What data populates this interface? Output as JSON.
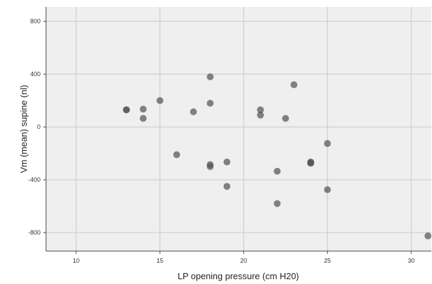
{
  "chart_data": {
    "type": "scatter",
    "xlabel": "LP opening pressure (cm H20)",
    "ylabel": "Vm (mean) supine (nl)",
    "xlim": [
      8.2,
      31.2
    ],
    "ylim": [
      -940,
      910
    ],
    "xticks": [
      10,
      15,
      20,
      25,
      30
    ],
    "yticks": [
      800,
      400,
      0,
      -400,
      -800
    ],
    "xtick_labels": [
      "10",
      "15",
      "20",
      "25",
      "30"
    ],
    "ytick_labels": [
      "800",
      "400",
      "0",
      "-400",
      "-800"
    ],
    "grid": true,
    "points": [
      {
        "x": 13,
        "y": 130
      },
      {
        "x": 13,
        "y": 130
      },
      {
        "x": 14,
        "y": 135
      },
      {
        "x": 14,
        "y": 65
      },
      {
        "x": 15,
        "y": 200
      },
      {
        "x": 16,
        "y": -210
      },
      {
        "x": 17,
        "y": 115
      },
      {
        "x": 18,
        "y": 380
      },
      {
        "x": 18,
        "y": 180
      },
      {
        "x": 18,
        "y": -285
      },
      {
        "x": 18,
        "y": -300
      },
      {
        "x": 19,
        "y": -265
      },
      {
        "x": 19,
        "y": -450
      },
      {
        "x": 21,
        "y": 130
      },
      {
        "x": 21,
        "y": 90
      },
      {
        "x": 22,
        "y": -335
      },
      {
        "x": 22,
        "y": -580
      },
      {
        "x": 22.5,
        "y": 65
      },
      {
        "x": 23,
        "y": 320
      },
      {
        "x": 24,
        "y": -265
      },
      {
        "x": 24,
        "y": -275
      },
      {
        "x": 24,
        "y": -270
      },
      {
        "x": 25,
        "y": -125
      },
      {
        "x": 25,
        "y": -475
      },
      {
        "x": 31,
        "y": -825
      }
    ]
  },
  "colors": {
    "plot_background": "#efefef",
    "grid": "#c8c8c8",
    "axis": "#444444",
    "marker": "#555555"
  }
}
